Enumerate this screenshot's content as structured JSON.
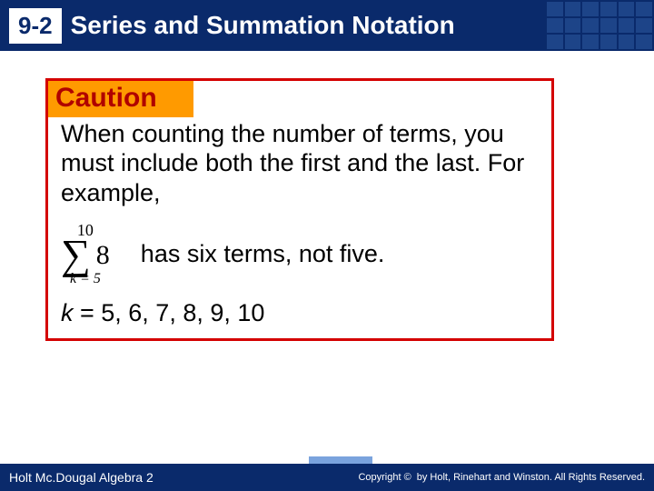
{
  "header": {
    "section_number": "9-2",
    "title": "Series and Summation Notation",
    "bg_color": "#0a2a6b",
    "text_color": "#ffffff",
    "badge_bg": "#ffffff",
    "badge_text_color": "#0a2a6b"
  },
  "caution": {
    "label": "Caution",
    "label_bg": "#ff9a00",
    "label_color": "#b00000",
    "border_color": "#d40000",
    "body_text": "When counting the number of terms, you must include both the first and the last. For example,",
    "sigma": {
      "upper": "10",
      "lower": "k = 5",
      "expression": "8"
    },
    "sigma_text": "has six terms, not five.",
    "k_var": "k",
    "k_eq": " = 5, 6, 7, 8, 9, 10"
  },
  "footer": {
    "left_text": "Holt Mc.Dougal Algebra 2",
    "right_text": "by Holt, Rinehart and Winston. All Rights Reserved.",
    "copyright_label": "Copyright ©",
    "bg_color": "#0a2a6b",
    "text_color": "#ffffff"
  }
}
